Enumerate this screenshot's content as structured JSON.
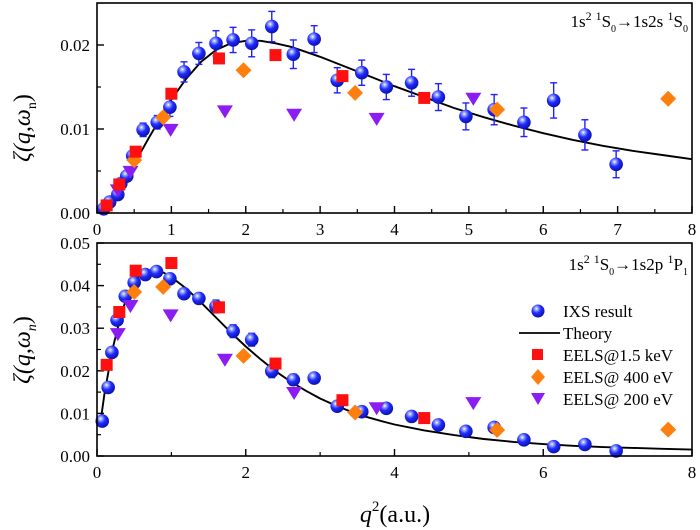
{
  "chart_data": [
    {
      "type": "scatter",
      "panel": "top",
      "annotation": {
        "main": "1s",
        "sup1": "2",
        "sup2": "1",
        "S": "S",
        "sub1": "0",
        "arrow": "→1s2s ",
        "sup3": "1",
        "S2": "S",
        "sub2": "0"
      },
      "xlabel": "",
      "ylabel": {
        "prefix": "ζ(q,ω",
        "sub": "n",
        "suffix": ")"
      },
      "xlim": [
        0,
        8
      ],
      "ylim": [
        0,
        0.025
      ],
      "xticks": [
        0,
        1,
        2,
        3,
        4,
        5,
        6,
        7,
        8
      ],
      "xtick_labels": [
        "0",
        "1",
        "2",
        "3",
        "4",
        "5",
        "6",
        "7",
        "8"
      ],
      "yticks": [
        0,
        0.01,
        0.02
      ],
      "ytick_labels": [
        "0.00",
        "0.01",
        "0.02"
      ],
      "series": [
        {
          "name": "IXS result",
          "kind": "ixs",
          "x": [
            0.09,
            0.17,
            0.28,
            0.32,
            0.4,
            0.48,
            0.62,
            0.81,
            0.98,
            1.17,
            1.37,
            1.6,
            1.83,
            2.08,
            2.35,
            2.64,
            2.92,
            3.23,
            3.56,
            3.89,
            4.23,
            4.59,
            4.96,
            5.34,
            5.74,
            6.14,
            6.56,
            6.98
          ],
          "y": [
            0.0005,
            0.0013,
            0.0022,
            0.0035,
            0.0044,
            0.0068,
            0.0099,
            0.0108,
            0.0126,
            0.0168,
            0.019,
            0.0202,
            0.0206,
            0.0202,
            0.0222,
            0.0189,
            0.0207,
            0.0158,
            0.0167,
            0.015,
            0.0155,
            0.0138,
            0.0115,
            0.0123,
            0.0108,
            0.0134,
            0.0093,
            0.0058
          ],
          "err": [
            0.0003,
            0.0004,
            0.0005,
            0.0005,
            0.0005,
            0.0005,
            0.0008,
            0.0008,
            0.0011,
            0.0012,
            0.0013,
            0.0015,
            0.0015,
            0.0016,
            0.0018,
            0.0017,
            0.0016,
            0.0015,
            0.0015,
            0.0015,
            0.0016,
            0.0016,
            0.0016,
            0.0018,
            0.0017,
            0.0021,
            0.0018,
            0.0016
          ]
        },
        {
          "name": "EELS@1.5 keV",
          "kind": "square",
          "x": [
            0.13,
            0.3,
            0.52,
            1.0,
            1.64,
            2.4,
            3.3,
            4.4
          ],
          "y": [
            0.0009,
            0.0034,
            0.0073,
            0.0142,
            0.0184,
            0.0188,
            0.0163,
            0.0137
          ]
        },
        {
          "name": "EELS@ 400 eV",
          "kind": "diamond",
          "x": [
            0.5,
            0.89,
            1.97,
            3.47,
            5.38,
            7.68
          ],
          "y": [
            0.0063,
            0.0114,
            0.017,
            0.0143,
            0.0123,
            0.0136
          ]
        },
        {
          "name": "EELS@ 200 eV",
          "kind": "triangle",
          "x": [
            0.28,
            0.45,
            0.99,
            1.72,
            2.65,
            3.76,
            5.06
          ],
          "y": [
            0.0027,
            0.0049,
            0.0099,
            0.0121,
            0.0117,
            0.0112,
            0.0136
          ]
        },
        {
          "name": "Theory",
          "kind": "line",
          "x": [
            0,
            0.1,
            0.2,
            0.3,
            0.4,
            0.5,
            0.6,
            0.7,
            0.8,
            0.9,
            1.0,
            1.2,
            1.4,
            1.6,
            1.8,
            2.0,
            2.2,
            2.4,
            2.6,
            2.8,
            3.0,
            3.2,
            3.4,
            3.6,
            3.8,
            4.0,
            4.4,
            4.8,
            5.2,
            5.6,
            6.0,
            6.4,
            6.8,
            7.2,
            7.6,
            8.0
          ],
          "y": [
            0,
            0.0006,
            0.0016,
            0.0029,
            0.0043,
            0.0058,
            0.0074,
            0.009,
            0.0105,
            0.0121,
            0.0135,
            0.016,
            0.018,
            0.0194,
            0.0202,
            0.0205,
            0.0205,
            0.0202,
            0.0198,
            0.0192,
            0.0186,
            0.0179,
            0.0172,
            0.0165,
            0.0158,
            0.0151,
            0.0138,
            0.0125,
            0.0114,
            0.0104,
            0.0095,
            0.0087,
            0.008,
            0.0074,
            0.0069,
            0.0064
          ]
        }
      ]
    },
    {
      "type": "scatter",
      "panel": "bottom",
      "annotation": {
        "main": "1s",
        "sup1": "2",
        "sup2": "1",
        "S": "S",
        "sub1": "0",
        "arrow": "→1s2p ",
        "sup3": "1",
        "S2": "P",
        "sub2": "1"
      },
      "xlabel": {
        "q": "q",
        "sup": "2",
        "rest": "(a.u.)"
      },
      "ylabel": {
        "prefix": "ζ(q,ω",
        "sub": "n",
        "suffix": ")"
      },
      "xlim": [
        0,
        8
      ],
      "ylim": [
        0,
        0.05
      ],
      "xticks": [
        0,
        2,
        4,
        6,
        8
      ],
      "xtick_labels": [
        "0",
        "2",
        "4",
        "6",
        "8"
      ],
      "minor_xticks": [
        1,
        3,
        5,
        7
      ],
      "yticks": [
        0,
        0.01,
        0.02,
        0.03,
        0.04,
        0.05
      ],
      "ytick_labels": [
        "0.00",
        "0.01",
        "0.02",
        "0.03",
        "0.04",
        "0.05"
      ],
      "legend": {
        "position": "right",
        "entries": [
          "IXS result",
          "Theory",
          "EELS@1.5 keV",
          "EELS@ 400 eV",
          "EELS@ 200 eV"
        ]
      },
      "series": [
        {
          "name": "IXS result",
          "kind": "ixs",
          "x": [
            0.07,
            0.15,
            0.2,
            0.27,
            0.38,
            0.5,
            0.65,
            0.8,
            0.98,
            1.17,
            1.37,
            1.6,
            1.83,
            2.08,
            2.35,
            2.64,
            2.92,
            3.23,
            3.56,
            3.89,
            4.23,
            4.59,
            4.96,
            5.34,
            5.74,
            6.14,
            6.56,
            6.98
          ],
          "y": [
            0.0082,
            0.0161,
            0.0243,
            0.0319,
            0.0375,
            0.0407,
            0.0426,
            0.0433,
            0.0416,
            0.0381,
            0.037,
            0.0351,
            0.0293,
            0.0273,
            0.0199,
            0.0179,
            0.0183,
            0.0117,
            0.0104,
            0.0112,
            0.0093,
            0.0073,
            0.0058,
            0.0067,
            0.0038,
            0.0022,
            0.0027,
            0.0012
          ],
          "err": [
            0,
            0,
            0,
            0,
            0,
            0,
            0,
            0,
            0,
            0,
            0,
            0.0015,
            0.0015,
            0.0015,
            0.0015,
            0.0013,
            0.0012,
            0.0008,
            0,
            0,
            0,
            0,
            0,
            0,
            0,
            0,
            0,
            0
          ]
        },
        {
          "name": "EELS@1.5 keV",
          "kind": "square",
          "x": [
            0.13,
            0.3,
            0.52,
            1.0,
            1.64,
            2.4,
            3.3,
            4.4
          ],
          "y": [
            0.0214,
            0.0338,
            0.0435,
            0.0453,
            0.0349,
            0.0217,
            0.0131,
            0.0089
          ]
        },
        {
          "name": "EELS@ 400 eV",
          "kind": "diamond",
          "x": [
            0.5,
            0.89,
            1.97,
            3.47,
            5.38,
            7.68
          ],
          "y": [
            0.0385,
            0.0397,
            0.0235,
            0.0102,
            0.0061,
            0.0062
          ]
        },
        {
          "name": "EELS@ 200 eV",
          "kind": "triangle",
          "x": [
            0.28,
            0.45,
            0.99,
            1.72,
            2.65,
            3.76,
            5.06
          ],
          "y": [
            0.0286,
            0.0352,
            0.033,
            0.0226,
            0.0148,
            0.0112,
            0.0124
          ]
        },
        {
          "name": "Theory",
          "kind": "line",
          "x": [
            0.05,
            0.1,
            0.15,
            0.2,
            0.3,
            0.4,
            0.5,
            0.6,
            0.7,
            0.8,
            0.9,
            1.0,
            1.2,
            1.4,
            1.6,
            1.8,
            2.0,
            2.2,
            2.4,
            2.6,
            2.8,
            3.0,
            3.2,
            3.4,
            3.6,
            3.8,
            4.0,
            4.4,
            4.8,
            5.2,
            5.6,
            6.0,
            6.4,
            6.8,
            7.2,
            7.6,
            8.0
          ],
          "y": [
            0.0083,
            0.0145,
            0.0195,
            0.0245,
            0.0315,
            0.0375,
            0.041,
            0.0428,
            0.0436,
            0.0435,
            0.043,
            0.042,
            0.0393,
            0.036,
            0.0325,
            0.029,
            0.0257,
            0.0227,
            0.0199,
            0.0175,
            0.0154,
            0.0135,
            0.0119,
            0.0105,
            0.0093,
            0.0083,
            0.0074,
            0.006,
            0.0049,
            0.004,
            0.0033,
            0.0028,
            0.0024,
            0.0021,
            0.0019,
            0.0017,
            0.0015
          ]
        }
      ]
    }
  ],
  "colors": {
    "ixs": "#1a1aff",
    "ixs_err": "#2020ff",
    "square": "#ff1010",
    "diamond": "#ff7f0e",
    "triangle": "#8b1cf2",
    "line": "#000000"
  }
}
